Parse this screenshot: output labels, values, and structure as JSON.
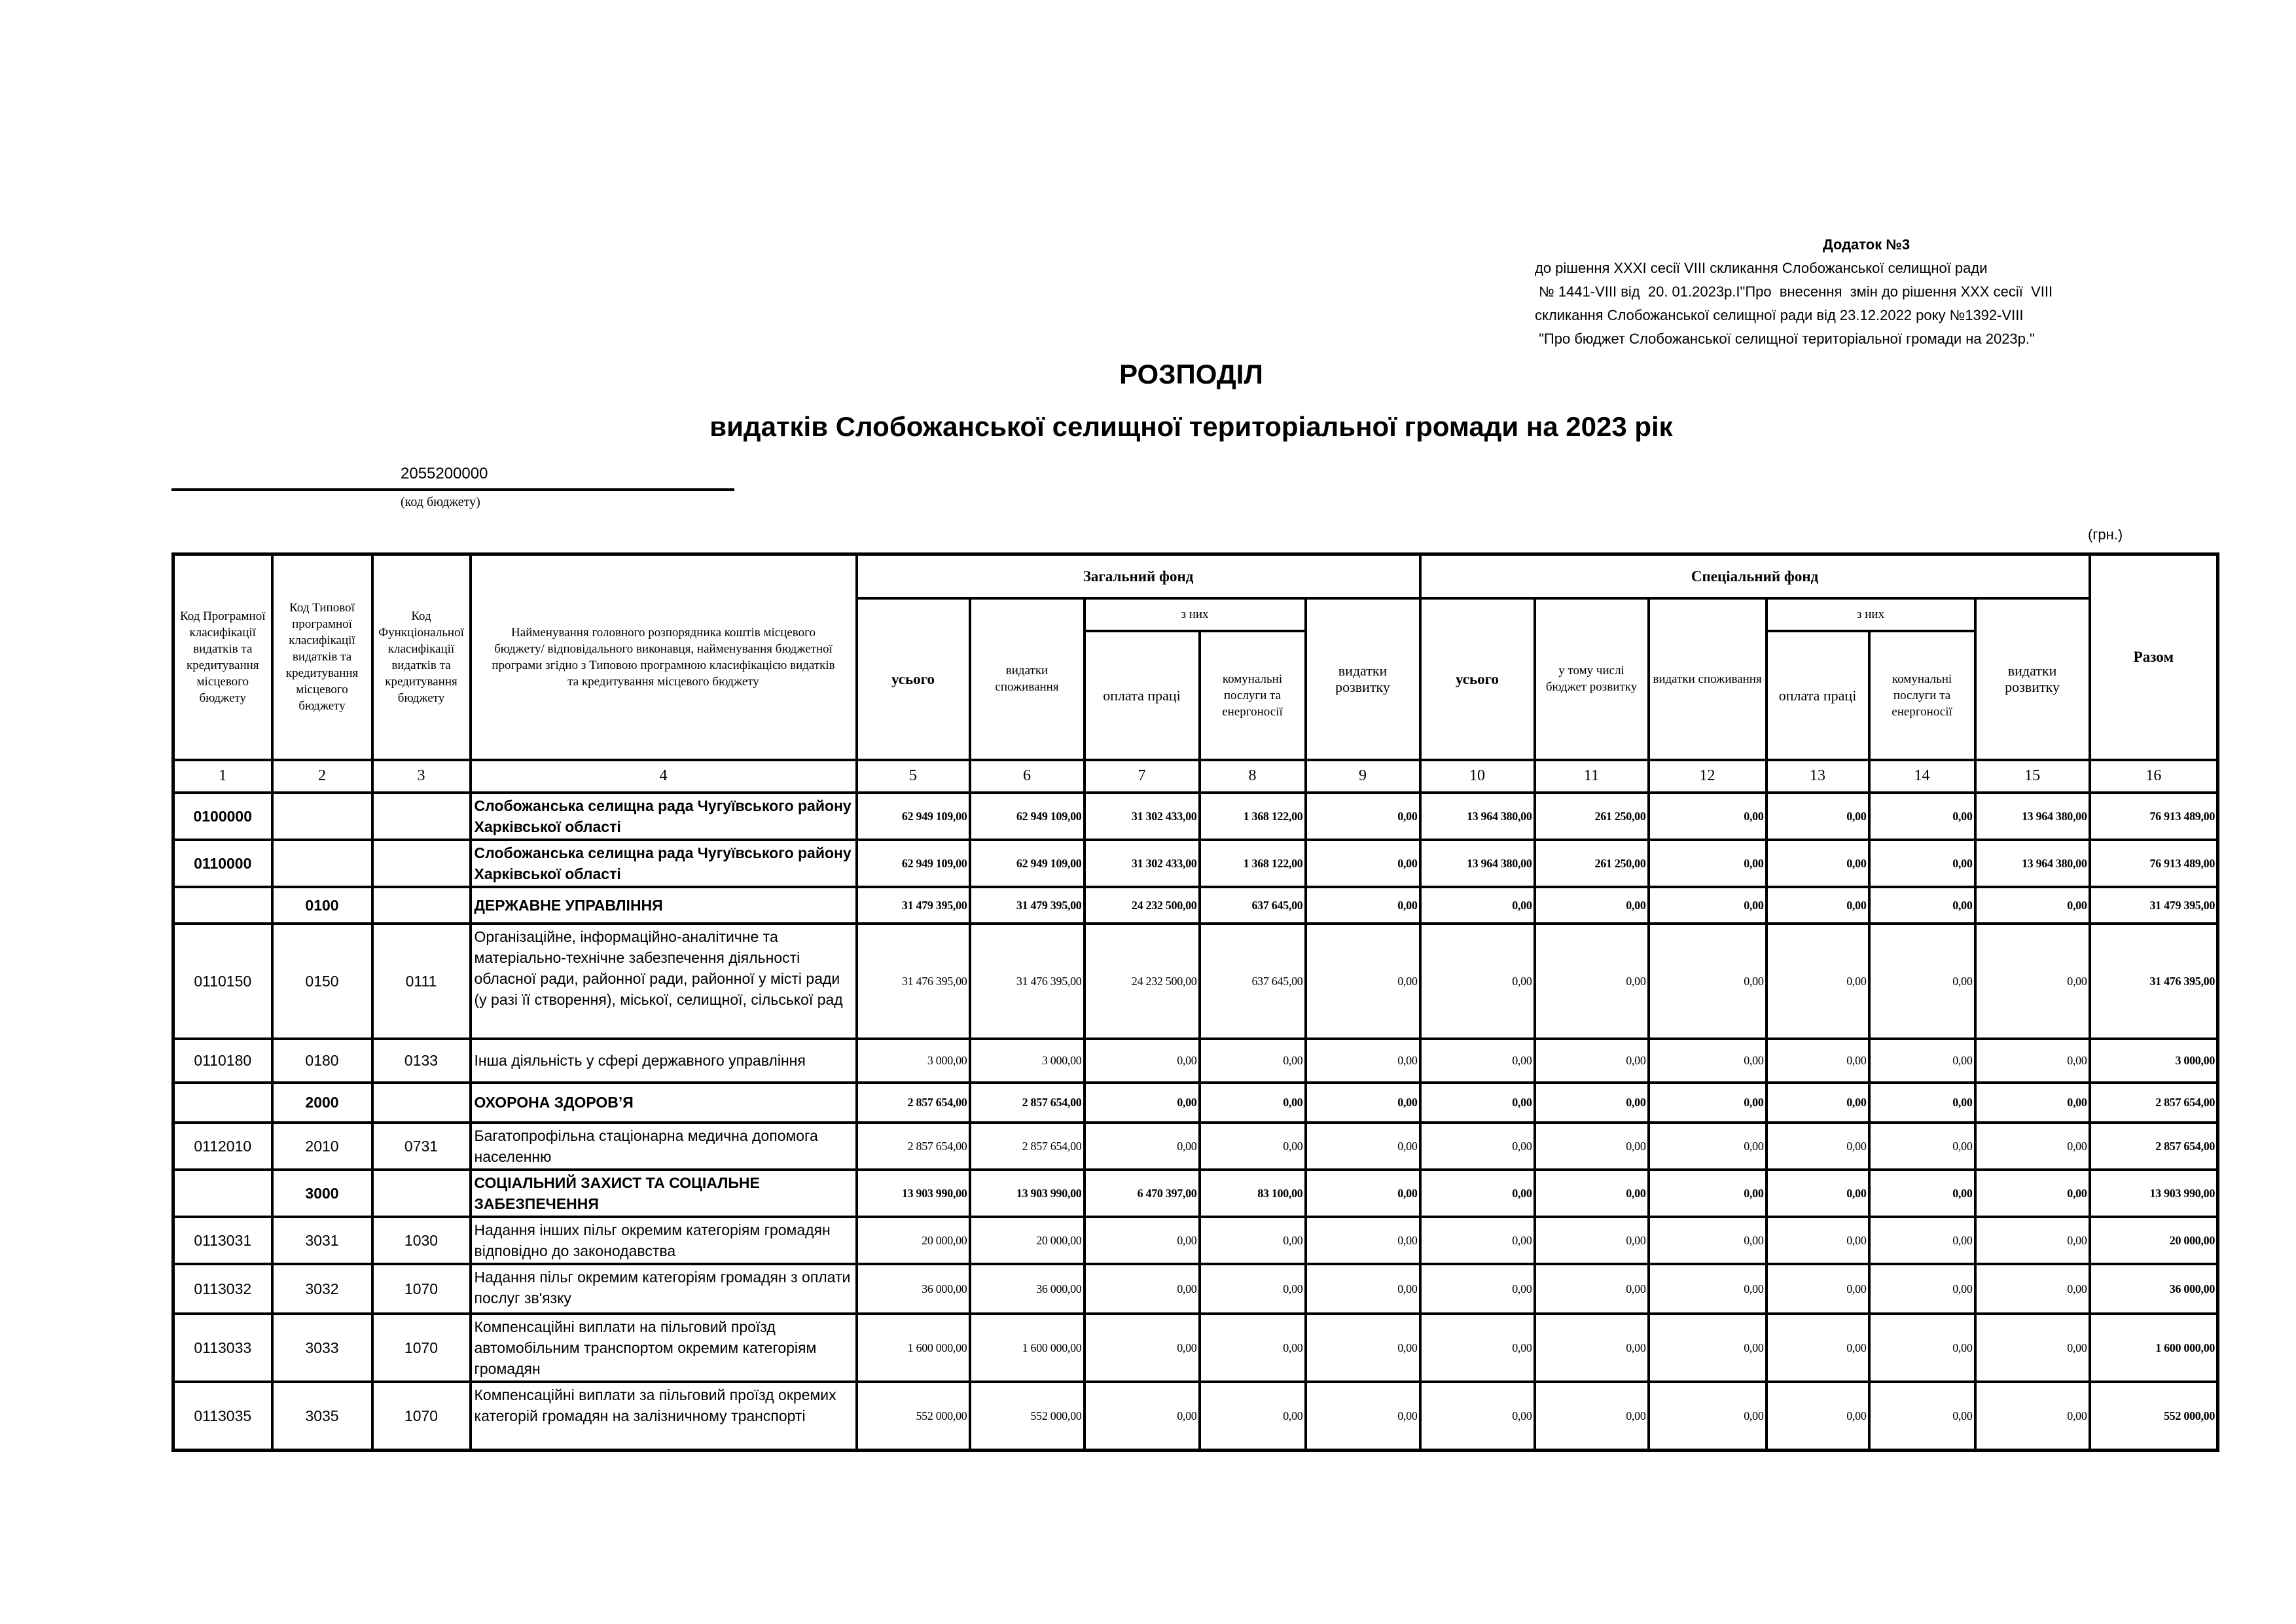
{
  "appendix": {
    "title": "Додаток №3",
    "lines": [
      "до рішення XXXI  сесії VIII скликання    Слобожанської селищної ради",
      " № 1441-VIII від  20. 01.2023р.І\"Про  внесення  змін до рішення XXX сесії  VIII",
      "скликання Слобожанської селищної ради від 23.12.2022 року №1392-VIII",
      " \"Про бюджет Слобожанської селищної територіальної громади на 2023р.\""
    ]
  },
  "title": "РОЗПОДІЛ",
  "subtitle": "видатків Слобожанської селищної територіальної громади на 2023 рік",
  "budget_code": {
    "value": "2055200000",
    "label": "(код бюджету)"
  },
  "currency": "(грн.)",
  "table": {
    "headers": {
      "col1": "Код Програмної класифікації видатків та кредитування місцевого бюджету",
      "col2": "Код Типової програмної класифікації видатків та кредитування місцевого бюджету",
      "col3": "Код Функціональної класифікації видатків та кредитування бюджету",
      "col4": "Найменування головного розпорядника коштів місцевого бюджету/ відповідального виконавця, найменування бюджетної програми згідно з Типовою програмною класифікацією видатків та кредитування місцевого бюджету",
      "general_fund": "Загальний фонд",
      "special_fund": "Спеціальний фонд",
      "total": "Разом",
      "of_which": "з них",
      "all": "усього",
      "consumption": "видатки споживання",
      "wages": "оплата праці",
      "utilities": "комунальні послуги та енергоносії",
      "development": "видатки розвитку",
      "incl_dev_budget": "у тому числі бюджет розвитку"
    },
    "column_numbers": [
      "1",
      "2",
      "3",
      "4",
      "5",
      "6",
      "7",
      "8",
      "9",
      "10",
      "11",
      "12",
      "13",
      "14",
      "15",
      "16"
    ],
    "rows": [
      {
        "kind": "total",
        "code1": "0100000",
        "code2": "",
        "code3": "",
        "name": "Слобожанська селищна рада Чугуївського району Харківської області",
        "values": [
          "62 949 109,00",
          "62 949 109,00",
          "31 302 433,00",
          "1 368 122,00",
          "0,00",
          "13 964 380,00",
          "261 250,00",
          "0,00",
          "0,00",
          "0,00",
          "13 964 380,00",
          "76 913 489,00"
        ]
      },
      {
        "kind": "total",
        "code1": "0110000",
        "code2": "",
        "code3": "",
        "name": "Слобожанська селищна рада Чугуївського району Харківської області",
        "values": [
          "62 949 109,00",
          "62 949 109,00",
          "31 302 433,00",
          "1 368 122,00",
          "0,00",
          "13 964 380,00",
          "261 250,00",
          "0,00",
          "0,00",
          "0,00",
          "13 964 380,00",
          "76 913 489,00"
        ]
      },
      {
        "kind": "group",
        "code1": "",
        "code2": "0100",
        "code3": "",
        "name": "ДЕРЖАВНЕ УПРАВЛІННЯ",
        "values": [
          "31 479 395,00",
          "31 479 395,00",
          "24 232 500,00",
          "637 645,00",
          "0,00",
          "0,00",
          "0,00",
          "0,00",
          "0,00",
          "0,00",
          "0,00",
          "31 479 395,00"
        ]
      },
      {
        "kind": "item",
        "code1": "0110150",
        "code2": "0150",
        "code3": "0111",
        "name": "Організаційне, інформаційно-аналітичне та матеріально-технічне забезпечення діяльності обласної ради, районної ради, районної у місті ради (у разі її створення), міської, селищної, сільської рад",
        "values": [
          "31 476 395,00",
          "31 476 395,00",
          "24 232 500,00",
          "637 645,00",
          "0,00",
          "0,00",
          "0,00",
          "0,00",
          "0,00",
          "0,00",
          "0,00",
          "31 476 395,00"
        ]
      },
      {
        "kind": "item",
        "code1": "0110180",
        "code2": "0180",
        "code3": "0133",
        "name": "Інша діяльність у сфері державного управління",
        "values": [
          "3 000,00",
          "3 000,00",
          "0,00",
          "0,00",
          "0,00",
          "0,00",
          "0,00",
          "0,00",
          "0,00",
          "0,00",
          "0,00",
          "3 000,00"
        ]
      },
      {
        "kind": "group",
        "code1": "",
        "code2": "2000",
        "code3": "",
        "name": "ОХОРОНА ЗДОРОВ’Я",
        "values": [
          "2 857 654,00",
          "2 857 654,00",
          "0,00",
          "0,00",
          "0,00",
          "0,00",
          "0,00",
          "0,00",
          "0,00",
          "0,00",
          "0,00",
          "2 857 654,00"
        ]
      },
      {
        "kind": "item",
        "code1": "0112010",
        "code2": "2010",
        "code3": "0731",
        "name": "Багатопрофільна стаціонарна медична допомога населенню",
        "values": [
          "2 857 654,00",
          "2 857 654,00",
          "0,00",
          "0,00",
          "0,00",
          "0,00",
          "0,00",
          "0,00",
          "0,00",
          "0,00",
          "0,00",
          "2 857 654,00"
        ]
      },
      {
        "kind": "group",
        "code1": "",
        "code2": "3000",
        "code3": "",
        "name": "СОЦІАЛЬНИЙ ЗАХИСТ ТА СОЦІАЛЬНЕ ЗАБЕЗПЕЧЕННЯ",
        "values": [
          "13 903 990,00",
          "13 903 990,00",
          "6 470 397,00",
          "83 100,00",
          "0,00",
          "0,00",
          "0,00",
          "0,00",
          "0,00",
          "0,00",
          "0,00",
          "13 903 990,00"
        ]
      },
      {
        "kind": "item",
        "code1": "0113031",
        "code2": "3031",
        "code3": "1030",
        "name": "Надання інших пільг окремим категоріям громадян відповідно до законодавства",
        "values": [
          "20 000,00",
          "20 000,00",
          "0,00",
          "0,00",
          "0,00",
          "0,00",
          "0,00",
          "0,00",
          "0,00",
          "0,00",
          "0,00",
          "20 000,00"
        ]
      },
      {
        "kind": "item",
        "code1": "0113032",
        "code2": "3032",
        "code3": "1070",
        "name": "Надання пільг окремим категоріям громадян з оплати послуг зв'язку",
        "values": [
          "36 000,00",
          "36 000,00",
          "0,00",
          "0,00",
          "0,00",
          "0,00",
          "0,00",
          "0,00",
          "0,00",
          "0,00",
          "0,00",
          "36 000,00"
        ]
      },
      {
        "kind": "item",
        "code1": "0113033",
        "code2": "3033",
        "code3": "1070",
        "name": "Компенсаційні виплати на пільговий проїзд автомобільним транспортом окремим категоріям громадян",
        "values": [
          "1 600 000,00",
          "1 600 000,00",
          "0,00",
          "0,00",
          "0,00",
          "0,00",
          "0,00",
          "0,00",
          "0,00",
          "0,00",
          "0,00",
          "1 600 000,00"
        ]
      },
      {
        "kind": "item",
        "code1": "0113035",
        "code2": "3035",
        "code3": "1070",
        "name": "Компенсаційні виплати за пільговий проїзд окремих категорій громадян на залізничному транспорті",
        "values": [
          "552 000,00",
          "552 000,00",
          "0,00",
          "0,00",
          "0,00",
          "0,00",
          "0,00",
          "0,00",
          "0,00",
          "0,00",
          "0,00",
          "552 000,00"
        ]
      }
    ]
  }
}
